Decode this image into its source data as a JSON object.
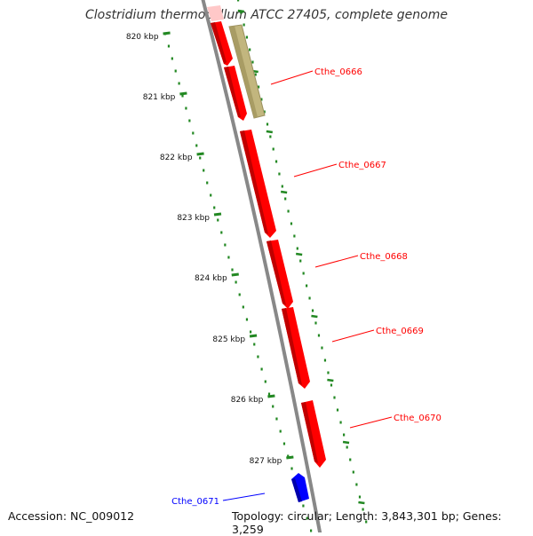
{
  "title": "Clostridium thermocellum ATCC 27405, complete genome",
  "footer": {
    "accession": "Accession: NC_009012",
    "summary": "Topology: circular; Length: 3,843,301 bp; Genes: 3,259"
  },
  "colors": {
    "forward_cds": "#ff0000",
    "reverse_cds": "#0000ff",
    "rna_feature": "#b8ae78",
    "backbone": "#888888",
    "tick_marks": "#228822"
  },
  "ticks": [
    "820 kbp",
    "821 kbp",
    "822 kbp",
    "823 kbp",
    "824 kbp",
    "825 kbp",
    "826 kbp",
    "827 kbp"
  ],
  "genes": [
    {
      "label": "Cthe_0666",
      "strand": "forward"
    },
    {
      "label": "Cthe_0667",
      "strand": "forward"
    },
    {
      "label": "Cthe_0668",
      "strand": "forward"
    },
    {
      "label": "Cthe_0669",
      "strand": "forward"
    },
    {
      "label": "Cthe_0670",
      "strand": "forward"
    },
    {
      "label": "Cthe_0671",
      "strand": "reverse"
    }
  ]
}
